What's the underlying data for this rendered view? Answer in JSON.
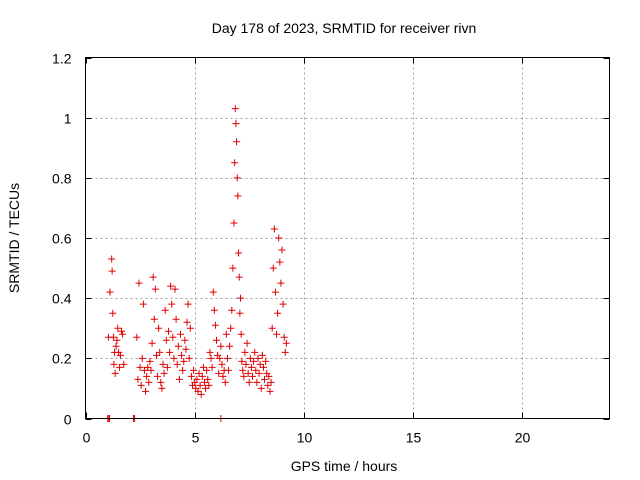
{
  "chart_data": {
    "type": "scatter",
    "title": "Day 178 of 2023, SRMTID for receiver rivn",
    "xlabel": "GPS time / hours",
    "ylabel": "SRMTID / TECUs",
    "xlim": [
      0,
      24
    ],
    "ylim": [
      0,
      1.2
    ],
    "x_ticks": [
      0,
      5,
      10,
      15,
      20
    ],
    "x_tick_labels": [
      "0",
      "5",
      "10",
      "15",
      "20"
    ],
    "y_ticks": [
      0,
      0.2,
      0.4,
      0.6,
      0.8,
      1.0,
      1.2
    ],
    "y_tick_labels": [
      "0",
      "0.2",
      "0.4",
      "0.6",
      "0.8",
      "1",
      "1.2"
    ],
    "grid": true,
    "marker": "+",
    "series": [
      {
        "name": "SRMTID",
        "color": "#e00000",
        "x": [
          1.05,
          1.12,
          1.2,
          1.22,
          1.25,
          1.28,
          1.3,
          1.33,
          1.36,
          1.4,
          1.44,
          1.48,
          1.52,
          1.56,
          1.6,
          1.65,
          1.7,
          1.75,
          2.35,
          2.4,
          2.45,
          2.5,
          2.55,
          2.6,
          2.65,
          2.7,
          2.75,
          2.8,
          2.85,
          2.9,
          2.95,
          3.0,
          3.05,
          3.1,
          3.15,
          3.2,
          3.25,
          3.3,
          3.35,
          3.4,
          3.45,
          3.5,
          3.55,
          3.6,
          3.65,
          3.7,
          3.75,
          3.8,
          3.85,
          3.9,
          3.95,
          4.0,
          4.05,
          4.1,
          4.15,
          4.2,
          4.25,
          4.3,
          4.35,
          4.4,
          4.45,
          4.5,
          4.55,
          4.6,
          4.65,
          4.7,
          4.75,
          4.8,
          4.85,
          4.9,
          4.95,
          5.0,
          5.05,
          5.1,
          5.15,
          5.2,
          5.25,
          5.3,
          5.35,
          5.4,
          5.45,
          5.5,
          5.55,
          5.6,
          5.65,
          5.7,
          5.75,
          5.8,
          5.85,
          5.9,
          5.95,
          6.0,
          6.05,
          6.1,
          6.15,
          6.2,
          6.25,
          6.3,
          6.35,
          6.4,
          6.45,
          6.5,
          6.55,
          6.6,
          6.65,
          6.7,
          6.75,
          6.8,
          6.83,
          6.86,
          6.89,
          6.92,
          6.95,
          6.98,
          7.01,
          7.04,
          7.07,
          7.1,
          7.13,
          7.16,
          7.2,
          7.25,
          7.3,
          7.35,
          7.4,
          7.45,
          7.5,
          7.55,
          7.6,
          7.65,
          7.7,
          7.75,
          7.8,
          7.85,
          7.9,
          7.95,
          8.0,
          8.05,
          8.1,
          8.15,
          8.2,
          8.25,
          8.3,
          8.35,
          8.4,
          8.45,
          8.5,
          8.55,
          8.6,
          8.65,
          8.7,
          8.75,
          8.8,
          8.85,
          8.9,
          8.95,
          9.0,
          9.05,
          9.1,
          9.15,
          9.2,
          1.02,
          1.07,
          1.1,
          2.2,
          2.25,
          6.2
        ],
        "y": [
          0.27,
          0.42,
          0.53,
          0.49,
          0.35,
          0.27,
          0.18,
          0.22,
          0.15,
          0.24,
          0.26,
          0.3,
          0.22,
          0.17,
          0.21,
          0.29,
          0.28,
          0.18,
          0.27,
          0.13,
          0.45,
          0.17,
          0.11,
          0.2,
          0.38,
          0.16,
          0.09,
          0.14,
          0.17,
          0.12,
          0.19,
          0.16,
          0.25,
          0.47,
          0.33,
          0.43,
          0.21,
          0.14,
          0.3,
          0.22,
          0.12,
          0.1,
          0.18,
          0.15,
          0.36,
          0.26,
          0.17,
          0.29,
          0.22,
          0.44,
          0.38,
          0.27,
          0.2,
          0.43,
          0.33,
          0.18,
          0.24,
          0.13,
          0.28,
          0.21,
          0.16,
          0.19,
          0.26,
          0.23,
          0.32,
          0.38,
          0.2,
          0.3,
          0.14,
          0.11,
          0.16,
          0.12,
          0.1,
          0.13,
          0.09,
          0.15,
          0.11,
          0.08,
          0.14,
          0.17,
          0.12,
          0.1,
          0.16,
          0.13,
          0.11,
          0.22,
          0.2,
          0.17,
          0.42,
          0.36,
          0.31,
          0.26,
          0.21,
          0.15,
          0.2,
          0.24,
          0.18,
          0.14,
          0.16,
          0.12,
          0.28,
          0.2,
          0.16,
          0.24,
          0.3,
          0.36,
          0.5,
          0.65,
          0.85,
          1.03,
          0.98,
          0.92,
          0.8,
          0.74,
          0.55,
          0.47,
          0.35,
          0.4,
          0.28,
          0.19,
          0.16,
          0.14,
          0.22,
          0.18,
          0.25,
          0.15,
          0.12,
          0.2,
          0.17,
          0.14,
          0.19,
          0.22,
          0.16,
          0.12,
          0.2,
          0.15,
          0.18,
          0.1,
          0.21,
          0.17,
          0.13,
          0.19,
          0.15,
          0.11,
          0.14,
          0.09,
          0.12,
          0.3,
          0.5,
          0.63,
          0.42,
          0.28,
          0.35,
          0.6,
          0.52,
          0.45,
          0.56,
          0.38,
          0.27,
          0.22,
          0.25,
          0.0,
          0.0,
          0.0,
          0.0,
          0.0,
          0.0
        ]
      }
    ]
  }
}
